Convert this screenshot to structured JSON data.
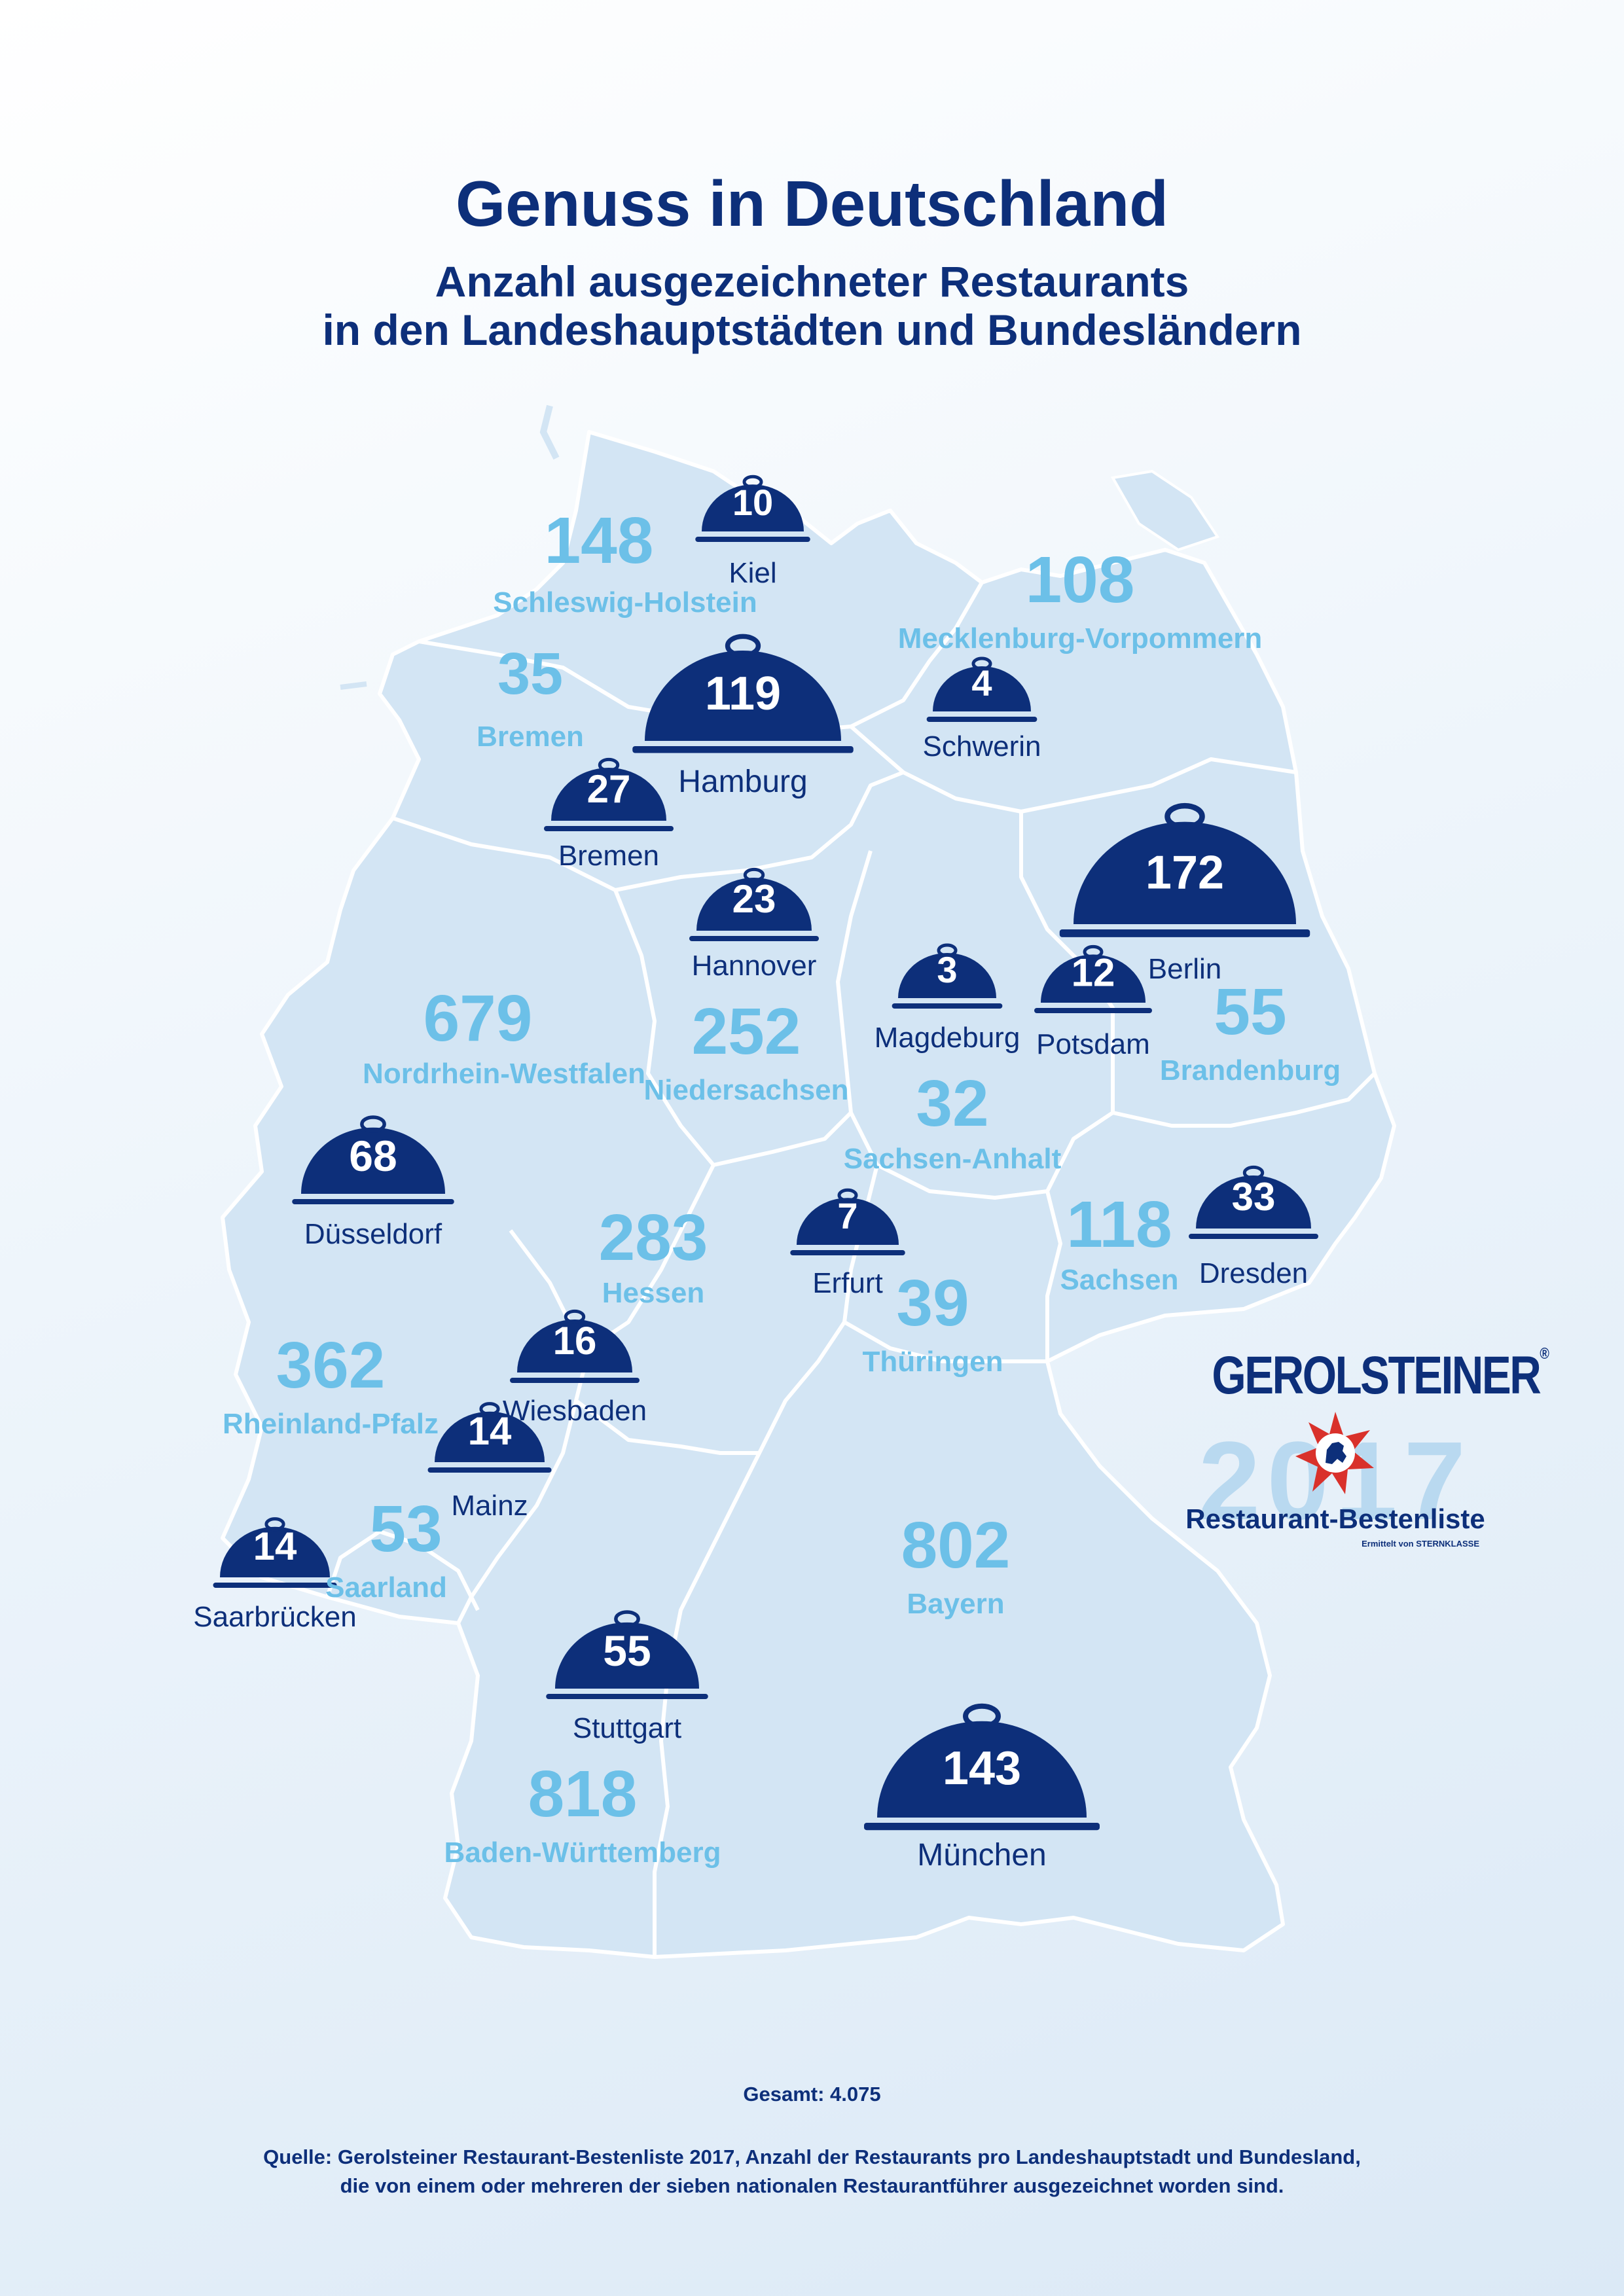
{
  "header": {
    "title": "Genuss in Deutschland",
    "subtitle_line1": "Anzahl ausgezeichneter Restaurants",
    "subtitle_line2": "in den Landeshauptstädten und Bundesländern"
  },
  "colors": {
    "land": "#d3e5f4",
    "border": "#ffffff",
    "dark_blue": "#0d2f7a",
    "light_blue": "#6cc0e8"
  },
  "states": [
    {
      "name": "Schleswig-Holstein",
      "count": "148"
    },
    {
      "name": "Mecklenburg-Vorpommern",
      "count": "108"
    },
    {
      "name": "Bremen",
      "count": "35"
    },
    {
      "name": "Nordrhein-Westfalen",
      "count": "679"
    },
    {
      "name": "Niedersachsen",
      "count": "252"
    },
    {
      "name": "Brandenburg",
      "count": "55"
    },
    {
      "name": "Sachsen-Anhalt",
      "count": "32"
    },
    {
      "name": "Hessen",
      "count": "283"
    },
    {
      "name": "Sachsen",
      "count": "118"
    },
    {
      "name": "Thüringen",
      "count": "39"
    },
    {
      "name": "Rheinland-Pfalz",
      "count": "362"
    },
    {
      "name": "Saarland",
      "count": "53"
    },
    {
      "name": "Bayern",
      "count": "802"
    },
    {
      "name": "Baden-Württemberg",
      "count": "818"
    }
  ],
  "cities": [
    {
      "name": "Kiel",
      "count": "10"
    },
    {
      "name": "Hamburg",
      "count": "119"
    },
    {
      "name": "Schwerin",
      "count": "4"
    },
    {
      "name": "Bremen",
      "count": "27"
    },
    {
      "name": "Hannover",
      "count": "23"
    },
    {
      "name": "Berlin",
      "count": "172"
    },
    {
      "name": "Magdeburg",
      "count": "3"
    },
    {
      "name": "Potsdam",
      "count": "12"
    },
    {
      "name": "Düsseldorf",
      "count": "68"
    },
    {
      "name": "Erfurt",
      "count": "7"
    },
    {
      "name": "Dresden",
      "count": "33"
    },
    {
      "name": "Wiesbaden",
      "count": "16"
    },
    {
      "name": "Mainz",
      "count": "14"
    },
    {
      "name": "Saarbrücken",
      "count": "14"
    },
    {
      "name": "Stuttgart",
      "count": "55"
    },
    {
      "name": "München",
      "count": "143"
    }
  ],
  "logo": {
    "brand": "GEROLSTEINER",
    "registered": "®",
    "year": "2017",
    "list_name": "Restaurant-Bestenliste",
    "determined_by": "Ermittelt von STERNKLASSE",
    "star_icon": "red-star-lion-emblem-icon"
  },
  "footer": {
    "total": "Gesamt: 4.075",
    "source_line1": "Quelle: Gerolsteiner Restaurant-Bestenliste 2017, Anzahl der Restaurants pro Landeshauptstadt und Bundesland,",
    "source_line2": "die von einem oder mehreren der sieben nationalen Restaurantführer ausgezeichnet worden sind."
  }
}
